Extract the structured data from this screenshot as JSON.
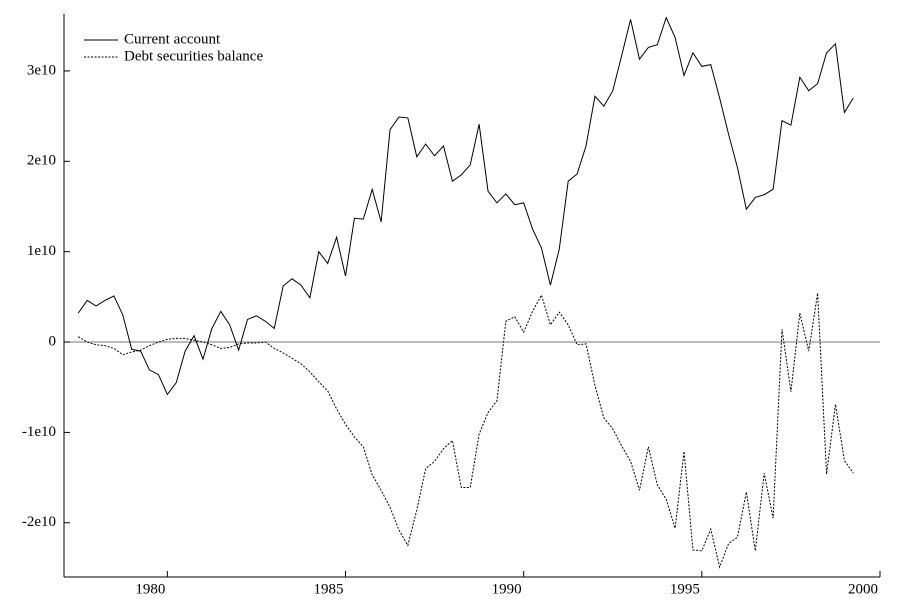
{
  "chart_data": {
    "type": "line",
    "x": [
      1977.5,
      1977.75,
      1978,
      1978.25,
      1978.5,
      1978.75,
      1979,
      1979.25,
      1979.5,
      1979.75,
      1980,
      1980.25,
      1980.5,
      1980.75,
      1981,
      1981.25,
      1981.5,
      1981.75,
      1982,
      1982.25,
      1982.5,
      1982.75,
      1983,
      1983.25,
      1983.5,
      1983.75,
      1984,
      1984.25,
      1984.5,
      1984.75,
      1985,
      1985.25,
      1985.5,
      1985.75,
      1986,
      1986.25,
      1986.5,
      1986.75,
      1987,
      1987.25,
      1987.5,
      1987.75,
      1988,
      1988.25,
      1988.5,
      1988.75,
      1989,
      1989.25,
      1989.5,
      1989.75,
      1990,
      1990.25,
      1990.5,
      1990.75,
      1991,
      1991.25,
      1991.5,
      1991.75,
      1992,
      1992.25,
      1992.5,
      1992.75,
      1993,
      1993.25,
      1993.5,
      1993.75,
      1994,
      1994.25,
      1994.5,
      1994.75,
      1995,
      1995.25,
      1995.5,
      1995.75,
      1996,
      1996.25,
      1996.5,
      1996.75,
      1997,
      1997.25,
      1997.5,
      1997.75,
      1998,
      1998.25,
      1998.5,
      1998.75,
      1999,
      1999.25
    ],
    "series": [
      {
        "name": "Current account",
        "color": "#000000",
        "dash": "none",
        "values": [
          3200000000.0,
          4600000000.0,
          4000000000.0,
          4600000000.0,
          5100000000.0,
          3000000000.0,
          -800000000.0,
          -1000000000.0,
          -3100000000.0,
          -3600000000.0,
          -5800000000.0,
          -4500000000.0,
          -1000000000.0,
          700000000.0,
          -1900000000.0,
          1500000000.0,
          3400000000.0,
          1900000000.0,
          -900000000.0,
          2500000000.0,
          2900000000.0,
          2300000000.0,
          1500000000.0,
          6200000000.0,
          7000000000.0,
          6300000000.0,
          4900000000.0,
          10000000000.0,
          8700000000.0,
          11600000000.0,
          7300000000.0,
          13700000000.0,
          13600000000.0,
          16900000000.0,
          13300000000.0,
          23500000000.0,
          24900000000.0,
          24800000000.0,
          20500000000.0,
          21900000000.0,
          20600000000.0,
          21700000000.0,
          17800000000.0,
          18500000000.0,
          19600000000.0,
          24100000000.0,
          16700000000.0,
          15400000000.0,
          16400000000.0,
          15200000000.0,
          15400000000.0,
          12500000000.0,
          10400000000.0,
          6300000000.0,
          10300000000.0,
          17800000000.0,
          18600000000.0,
          21700000000.0,
          27200000000.0,
          26100000000.0,
          27800000000.0,
          31700000000.0,
          35700000000.0,
          31300000000.0,
          32600000000.0,
          32900000000.0,
          35900000000.0,
          33700000000.0,
          29500000000.0,
          32000000000.0,
          30500000000.0,
          30700000000.0,
          27000000000.0,
          23000000000.0,
          19300000000.0,
          14700000000.0,
          16000000000.0,
          16300000000.0,
          16900000000.0,
          24500000000.0,
          24000000000.0,
          29300000000.0,
          27800000000.0,
          28600000000.0,
          32000000000.0,
          33000000000.0,
          25400000000.0,
          27000000000.0
        ]
      },
      {
        "name": "Debt securities balance",
        "color": "#000000",
        "dash": "2,1.5",
        "values": [
          600000000.0,
          0,
          -300000000.0,
          -400000000.0,
          -700000000.0,
          -1400000000.0,
          -1100000000.0,
          -900000000.0,
          -400000000.0,
          0,
          300000000.0,
          400000000.0,
          400000000.0,
          200000000.0,
          0,
          -300000000.0,
          -700000000.0,
          -600000000.0,
          -200000000.0,
          -100000000.0,
          -100000000.0,
          0,
          -700000000.0,
          -1200000000.0,
          -1800000000.0,
          -2400000000.0,
          -3300000000.0,
          -4400000000.0,
          -5400000000.0,
          -7400000000.0,
          -9100000000.0,
          -10500000000.0,
          -11600000000.0,
          -14700000000.0,
          -16400000000.0,
          -18300000000.0,
          -20800000000.0,
          -22500000000.0,
          -18600000000.0,
          -14000000000.0,
          -13200000000.0,
          -11800000000.0,
          -10900000000.0,
          -16100000000.0,
          -16100000000.0,
          -10200000000.0,
          -7800000000.0,
          -6500000000.0,
          2300000000.0,
          2800000000.0,
          1100000000.0,
          3400000000.0,
          5200000000.0,
          1900000000.0,
          3300000000.0,
          1900000000.0,
          -300000000.0,
          -200000000.0,
          -4800000000.0,
          -8400000000.0,
          -9600000000.0,
          -11500000000.0,
          -13200000000.0,
          -16400000000.0,
          -11600000000.0,
          -15800000000.0,
          -17400000000.0,
          -20600000000.0,
          -12100000000.0,
          -23000000000.0,
          -23100000000.0,
          -20700000000.0,
          -24900000000.0,
          -22300000000.0,
          -21600000000.0,
          -16600000000.0,
          -23100000000.0,
          -14500000000.0,
          -19500000000.0,
          1400000000.0,
          -5500000000.0,
          3200000000.0,
          -1000000000.0,
          5400000000.0,
          -14600000000.0,
          -6900000000.0,
          -13100000000.0,
          -14500000000.0
        ]
      }
    ],
    "xlim": [
      1977.1,
      2000
    ],
    "xticks": [
      1980,
      1985,
      1990,
      1995,
      2000
    ],
    "ylim": [
      -26000000000.0,
      36300000000.0
    ],
    "yticks": [
      {
        "value": -20000000000.0,
        "label": "-2e10"
      },
      {
        "value": -10000000000.0,
        "label": "-1e10"
      },
      0,
      {
        "value": 10000000000.0,
        "label": "1e10"
      },
      {
        "value": 20000000000.0,
        "label": "2e10"
      },
      {
        "value": 30000000000.0,
        "label": "3e10"
      }
    ],
    "zero_line": true,
    "legend": "upper left"
  }
}
